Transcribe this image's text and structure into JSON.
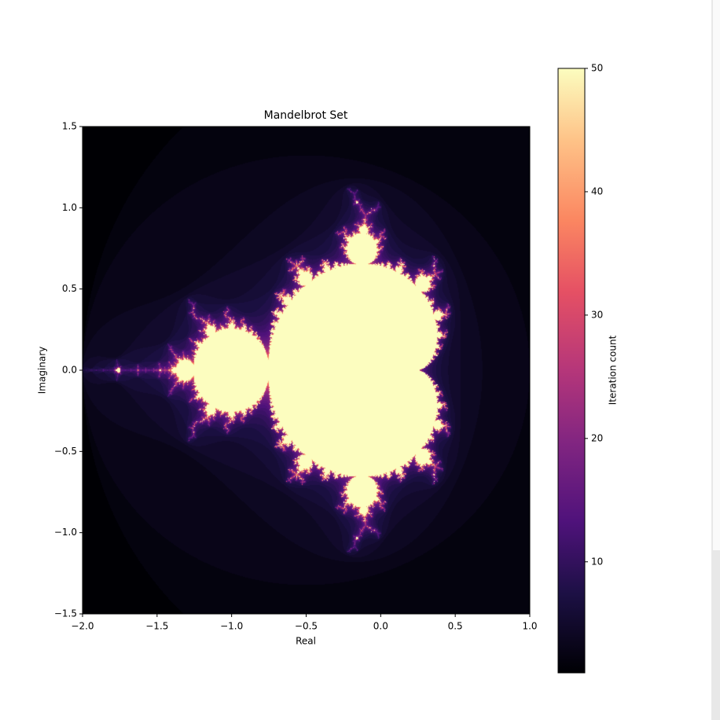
{
  "chart_data": {
    "type": "image",
    "title": "Mandelbrot Set",
    "xlabel": "Real",
    "ylabel": "Imaginary",
    "xlim": [
      -2,
      1
    ],
    "ylim": [
      -1.5,
      1.5
    ],
    "xticks": [
      {
        "value": -2,
        "label": "−2.0"
      },
      {
        "value": -1.5,
        "label": "−1.5"
      },
      {
        "value": -1,
        "label": "−1.0"
      },
      {
        "value": -0.5,
        "label": "−0.5"
      },
      {
        "value": 0,
        "label": "0.0"
      },
      0.5,
      {
        "value": 1,
        "label": "1.0"
      }
    ],
    "yticks": [
      {
        "value": -1.5,
        "label": "−1.5"
      },
      {
        "value": -1,
        "label": "−1.0"
      },
      {
        "value": -0.5,
        "label": "−0.5"
      },
      {
        "value": 0,
        "label": "0.0"
      },
      0.5,
      {
        "value": 1,
        "label": "1.0"
      },
      1.5
    ],
    "colormap": "magma",
    "colorbar": {
      "label": "Iteration count",
      "lim": [
        1,
        50
      ],
      "ticks": [
        10,
        20,
        30,
        40,
        50
      ]
    }
  }
}
